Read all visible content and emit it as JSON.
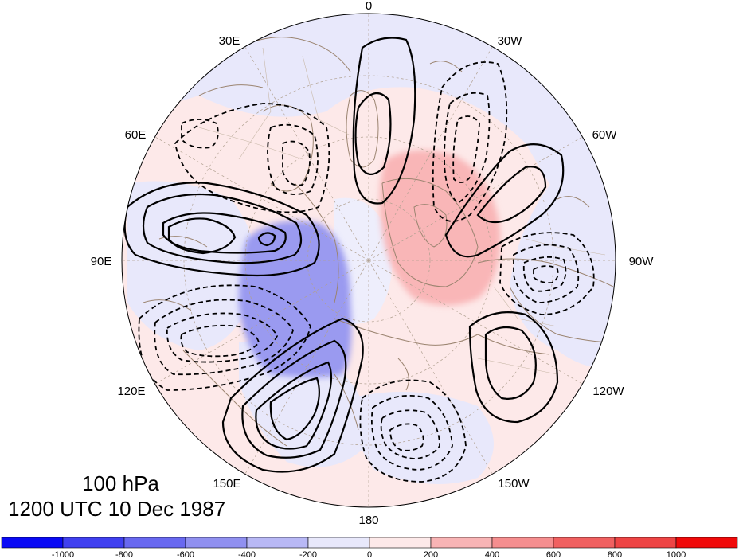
{
  "map": {
    "level_label": "100 hPa",
    "time_label": "1200 UTC 10 Dec 1987",
    "longitude_labels": [
      "0",
      "30W",
      "60W",
      "90W",
      "120W",
      "150W",
      "180",
      "150E",
      "120E",
      "90E",
      "60E",
      "30E"
    ],
    "projection": "north polar stereographic",
    "shading_fields": [
      {
        "sign": "positive",
        "color": "#f57a7e",
        "location": "over North America / Hudson Bay"
      },
      {
        "sign": "negative",
        "color": "#9a9af0",
        "location": "over central Siberia"
      }
    ],
    "contours": {
      "positive_style": "solid",
      "negative_style": "dashed",
      "color": "#000000"
    }
  },
  "colorbar": {
    "tick_labels": [
      "-1000",
      "-800",
      "-600",
      "-400",
      "-200",
      "0",
      "200",
      "400",
      "600",
      "800",
      "1000"
    ],
    "colors": [
      "#0a0af5",
      "#4040f0",
      "#6868f0",
      "#9090f0",
      "#b8b8f5",
      "#e8e8fb",
      "#fde9e9",
      "#f8b4b5",
      "#f58e8f",
      "#f06060",
      "#ee4444",
      "#f00a0a"
    ]
  }
}
